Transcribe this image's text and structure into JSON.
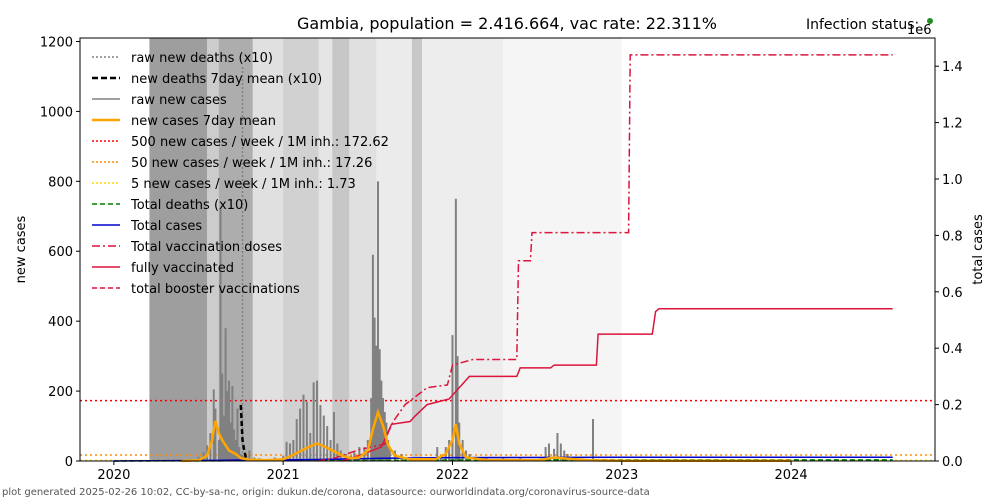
{
  "footer": "plot generated 2025-02-26 10:02, CC-by-sa-nc, origin: dukun.de/corona, datasource: ourworldindata.org/coronavirus-source-data",
  "chart_data": {
    "type": "line",
    "title": "Gambia, population = 2.416.664, vac rate: 22.311%",
    "status_label": "Infection status:",
    "status_color": "#228b22",
    "xlabel": "",
    "ylabel": "new cases",
    "y2label": "total cases",
    "y2_multiplier_label": "1e6",
    "xlim": [
      2019.8,
      2024.85
    ],
    "ylim": [
      0,
      1210
    ],
    "y2lim": [
      0,
      1.5
    ],
    "x_ticks": [
      2020,
      2021,
      2022,
      2023,
      2024
    ],
    "x_tick_labels": [
      "2020",
      "2021",
      "2022",
      "2023",
      "2024"
    ],
    "y_ticks": [
      0,
      200,
      400,
      600,
      800,
      1000,
      1200
    ],
    "y_tick_labels": [
      "0",
      "200",
      "400",
      "600",
      "800",
      "1000",
      "1200"
    ],
    "y2_ticks": [
      0,
      0.2,
      0.4,
      0.6,
      0.8,
      1.0,
      1.2,
      1.4
    ],
    "y2_tick_labels": [
      "0.0",
      "0.2",
      "0.4",
      "0.6",
      "0.8",
      "1.0",
      "1.2",
      "1.4"
    ],
    "colors": {
      "raw_deaths": "#808080",
      "deaths_mean": "#000000",
      "raw_cases": "#808080",
      "cases_mean": "#ffa500",
      "thr500": "#ff0000",
      "thr50": "#ff8c00",
      "thr5": "#ffd700",
      "total_deaths": "#008000",
      "total_cases": "#0000cd",
      "vaccine": "#dc143c"
    },
    "shading": [
      {
        "x0": 2020.21,
        "x1": 2020.55,
        "level": 0.38
      },
      {
        "x0": 2020.55,
        "x1": 2020.62,
        "level": 0.2
      },
      {
        "x0": 2020.62,
        "x1": 2020.82,
        "level": 0.32
      },
      {
        "x0": 2020.82,
        "x1": 2021.0,
        "level": 0.12
      },
      {
        "x0": 2021.0,
        "x1": 2021.21,
        "level": 0.18
      },
      {
        "x0": 2021.21,
        "x1": 2021.29,
        "level": 0.1
      },
      {
        "x0": 2021.29,
        "x1": 2021.39,
        "level": 0.22
      },
      {
        "x0": 2021.39,
        "x1": 2021.55,
        "level": 0.12
      },
      {
        "x0": 2021.55,
        "x1": 2021.76,
        "level": 0.08
      },
      {
        "x0": 2021.76,
        "x1": 2021.82,
        "level": 0.22
      },
      {
        "x0": 2021.82,
        "x1": 2022.3,
        "level": 0.07
      },
      {
        "x0": 2022.3,
        "x1": 2023.0,
        "level": 0.04
      }
    ],
    "threshold_lines": [
      {
        "name": "500 new cases / week / 1M inh.: 172.62",
        "value": 172.62
      },
      {
        "name": "50 new cases / week / 1M inh.: 17.26",
        "value": 17.26
      },
      {
        "name": "5 new cases / week / 1M inh.: 1.73",
        "value": 1.73
      }
    ],
    "raw_new_cases": [
      [
        2020.45,
        5
      ],
      [
        2020.5,
        12
      ],
      [
        2020.53,
        25
      ],
      [
        2020.55,
        45
      ],
      [
        2020.57,
        80
      ],
      [
        2020.59,
        205
      ],
      [
        2020.6,
        150
      ],
      [
        2020.62,
        60
      ],
      [
        2020.63,
        720
      ],
      [
        2020.64,
        250
      ],
      [
        2020.65,
        130
      ],
      [
        2020.66,
        380
      ],
      [
        2020.67,
        200
      ],
      [
        2020.68,
        230
      ],
      [
        2020.69,
        110
      ],
      [
        2020.7,
        215
      ],
      [
        2020.71,
        90
      ],
      [
        2020.72,
        60
      ],
      [
        2020.73,
        150
      ],
      [
        2020.74,
        40
      ],
      [
        2020.75,
        20
      ],
      [
        2020.77,
        15
      ],
      [
        2020.8,
        30
      ],
      [
        2020.83,
        10
      ],
      [
        2020.86,
        8
      ],
      [
        2020.9,
        5
      ],
      [
        2020.95,
        10
      ],
      [
        2021.0,
        15
      ],
      [
        2021.02,
        55
      ],
      [
        2021.04,
        50
      ],
      [
        2021.06,
        60
      ],
      [
        2021.08,
        120
      ],
      [
        2021.1,
        150
      ],
      [
        2021.12,
        190
      ],
      [
        2021.14,
        170
      ],
      [
        2021.16,
        80
      ],
      [
        2021.18,
        225
      ],
      [
        2021.2,
        230
      ],
      [
        2021.22,
        160
      ],
      [
        2021.24,
        130
      ],
      [
        2021.26,
        100
      ],
      [
        2021.28,
        60
      ],
      [
        2021.3,
        140
      ],
      [
        2021.32,
        50
      ],
      [
        2021.34,
        30
      ],
      [
        2021.37,
        20
      ],
      [
        2021.4,
        15
      ],
      [
        2021.42,
        25
      ],
      [
        2021.45,
        40
      ],
      [
        2021.48,
        40
      ],
      [
        2021.5,
        60
      ],
      [
        2021.52,
        180
      ],
      [
        2021.53,
        590
      ],
      [
        2021.54,
        410
      ],
      [
        2021.55,
        330
      ],
      [
        2021.56,
        800
      ],
      [
        2021.57,
        320
      ],
      [
        2021.58,
        230
      ],
      [
        2021.59,
        180
      ],
      [
        2021.6,
        140
      ],
      [
        2021.61,
        110
      ],
      [
        2021.62,
        60
      ],
      [
        2021.63,
        40
      ],
      [
        2021.66,
        30
      ],
      [
        2021.7,
        20
      ],
      [
        2021.75,
        10
      ],
      [
        2021.8,
        10
      ],
      [
        2021.86,
        10
      ],
      [
        2021.91,
        40
      ],
      [
        2021.93,
        10
      ],
      [
        2021.96,
        40
      ],
      [
        2021.98,
        60
      ],
      [
        2022.0,
        360
      ],
      [
        2022.02,
        750
      ],
      [
        2022.03,
        300
      ],
      [
        2022.04,
        110
      ],
      [
        2022.06,
        60
      ],
      [
        2022.08,
        30
      ],
      [
        2022.1,
        20
      ],
      [
        2022.14,
        10
      ],
      [
        2022.2,
        10
      ],
      [
        2022.3,
        10
      ],
      [
        2022.4,
        10
      ],
      [
        2022.5,
        5
      ],
      [
        2022.55,
        40
      ],
      [
        2022.57,
        50
      ],
      [
        2022.6,
        35
      ],
      [
        2022.62,
        80
      ],
      [
        2022.64,
        50
      ],
      [
        2022.66,
        30
      ],
      [
        2022.68,
        20
      ],
      [
        2022.72,
        10
      ],
      [
        2022.78,
        5
      ],
      [
        2022.83,
        120
      ],
      [
        2022.9,
        5
      ],
      [
        2023.0,
        5
      ],
      [
        2023.2,
        5
      ],
      [
        2023.5,
        5
      ]
    ],
    "cases_7day_mean": [
      [
        2020.4,
        0
      ],
      [
        2020.5,
        2
      ],
      [
        2020.55,
        15
      ],
      [
        2020.58,
        60
      ],
      [
        2020.6,
        115
      ],
      [
        2020.62,
        80
      ],
      [
        2020.64,
        60
      ],
      [
        2020.66,
        45
      ],
      [
        2020.68,
        30
      ],
      [
        2020.7,
        25
      ],
      [
        2020.72,
        20
      ],
      [
        2020.75,
        8
      ],
      [
        2020.8,
        4
      ],
      [
        2020.9,
        2
      ],
      [
        2021.0,
        5
      ],
      [
        2021.05,
        15
      ],
      [
        2021.1,
        28
      ],
      [
        2021.15,
        40
      ],
      [
        2021.2,
        50
      ],
      [
        2021.25,
        40
      ],
      [
        2021.3,
        28
      ],
      [
        2021.35,
        15
      ],
      [
        2021.4,
        8
      ],
      [
        2021.45,
        10
      ],
      [
        2021.5,
        30
      ],
      [
        2021.53,
        90
      ],
      [
        2021.56,
        140
      ],
      [
        2021.59,
        100
      ],
      [
        2021.62,
        45
      ],
      [
        2021.66,
        15
      ],
      [
        2021.75,
        5
      ],
      [
        2021.9,
        5
      ],
      [
        2021.96,
        20
      ],
      [
        2022.0,
        60
      ],
      [
        2022.02,
        105
      ],
      [
        2022.04,
        50
      ],
      [
        2022.08,
        10
      ],
      [
        2022.2,
        3
      ],
      [
        2022.5,
        2
      ],
      [
        2022.6,
        10
      ],
      [
        2022.65,
        8
      ],
      [
        2022.8,
        2
      ],
      [
        2023.0,
        1
      ],
      [
        2024.0,
        1
      ]
    ],
    "deaths_7day_mean_x10": [
      [
        2020.75,
        160
      ],
      [
        2020.76,
        60
      ],
      [
        2020.77,
        30
      ],
      [
        2020.78,
        10
      ]
    ],
    "raw_deaths_x10": [
      [
        2020.76,
        1130
      ]
    ],
    "total_cases": [
      [
        2020.0,
        0
      ],
      [
        2020.6,
        0.002
      ],
      [
        2020.8,
        0.004
      ],
      [
        2021.0,
        0.004
      ],
      [
        2021.3,
        0.006
      ],
      [
        2021.6,
        0.01
      ],
      [
        2022.0,
        0.012
      ],
      [
        2023.0,
        0.013
      ],
      [
        2024.6,
        0.013
      ]
    ],
    "total_deaths_x10": [
      [
        2020.0,
        0
      ],
      [
        2020.7,
        0.0008
      ],
      [
        2021.6,
        0.002
      ],
      [
        2022.2,
        0.004
      ],
      [
        2024.6,
        0.004
      ]
    ],
    "total_vaccination_doses": [
      [
        2021.2,
        0.0
      ],
      [
        2021.3,
        0.01
      ],
      [
        2021.45,
        0.04
      ],
      [
        2021.6,
        0.06
      ],
      [
        2021.62,
        0.1
      ],
      [
        2021.65,
        0.14
      ],
      [
        2021.72,
        0.2
      ],
      [
        2021.85,
        0.26
      ],
      [
        2021.97,
        0.27
      ],
      [
        2022.0,
        0.34
      ],
      [
        2022.06,
        0.35
      ],
      [
        2022.12,
        0.36
      ],
      [
        2022.38,
        0.36
      ],
      [
        2022.39,
        0.71
      ],
      [
        2022.46,
        0.71
      ],
      [
        2022.47,
        0.81
      ],
      [
        2022.6,
        0.81
      ],
      [
        2022.8,
        0.81
      ],
      [
        2023.04,
        0.81
      ],
      [
        2023.05,
        1.44
      ],
      [
        2024.6,
        1.44
      ]
    ],
    "fully_vaccinated": [
      [
        2021.35,
        0.0
      ],
      [
        2021.45,
        0.02
      ],
      [
        2021.58,
        0.05
      ],
      [
        2021.64,
        0.13
      ],
      [
        2021.75,
        0.14
      ],
      [
        2021.78,
        0.16
      ],
      [
        2021.85,
        0.2
      ],
      [
        2021.98,
        0.22
      ],
      [
        2022.1,
        0.3
      ],
      [
        2022.38,
        0.3
      ],
      [
        2022.4,
        0.33
      ],
      [
        2022.58,
        0.33
      ],
      [
        2022.6,
        0.34
      ],
      [
        2022.85,
        0.34
      ],
      [
        2022.86,
        0.45
      ],
      [
        2023.18,
        0.45
      ],
      [
        2023.2,
        0.53
      ],
      [
        2023.22,
        0.54
      ],
      [
        2024.6,
        0.54
      ]
    ],
    "legend": {
      "placement": "top-left",
      "entries": [
        {
          "label": "raw new deaths (x10)",
          "key": "raw_deaths",
          "style": "dotted"
        },
        {
          "label": "new deaths 7day mean (x10)",
          "key": "deaths_mean",
          "style": "dashed-bold"
        },
        {
          "label": "raw new cases",
          "key": "raw_cases",
          "style": "solid"
        },
        {
          "label": "new cases 7day mean",
          "key": "cases_mean",
          "style": "solid-bold"
        },
        {
          "label": "500 new cases / week / 1M inh.: 172.62",
          "key": "thr500",
          "style": "dotted"
        },
        {
          "label": "50 new cases / week / 1M inh.: 17.26",
          "key": "thr50",
          "style": "dotted"
        },
        {
          "label": "5 new cases / week / 1M inh.: 1.73",
          "key": "thr5",
          "style": "dotted"
        },
        {
          "label": "Total deaths (x10)",
          "key": "total_deaths",
          "style": "dashed"
        },
        {
          "label": "Total cases",
          "key": "total_cases",
          "style": "solid"
        },
        {
          "label": "Total vaccination doses",
          "key": "vaccine",
          "style": "dashdot"
        },
        {
          "label": "fully vaccinated",
          "key": "vaccine",
          "style": "solid"
        },
        {
          "label": "total booster vaccinations",
          "key": "vaccine",
          "style": "dashed"
        }
      ]
    }
  }
}
